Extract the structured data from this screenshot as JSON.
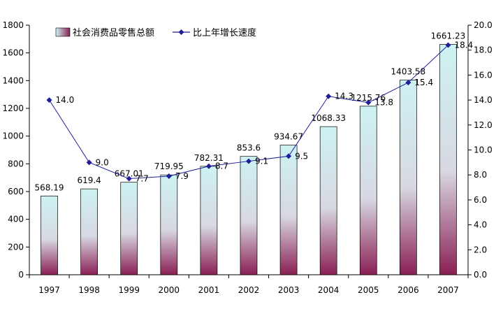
{
  "chart_data": {
    "type": "bar",
    "categories": [
      "1997",
      "1998",
      "1999",
      "2000",
      "2001",
      "2002",
      "2003",
      "2004",
      "2005",
      "2006",
      "2007"
    ],
    "series": [
      {
        "name": "社会消费品零售总额",
        "type": "bar",
        "axis": "left",
        "values": [
          568.19,
          619.4,
          667.01,
          719.95,
          782.31,
          853.6,
          934.67,
          1068.33,
          1215.76,
          1403.58,
          1661.23
        ],
        "labels": [
          "568.19",
          "619.4",
          "667.01",
          "719.95",
          "782.31",
          "853.6",
          "934.67",
          "1068.33",
          "1215.76",
          "1403.58",
          "1661.23"
        ]
      },
      {
        "name": "比上年增长速度",
        "type": "line",
        "axis": "right",
        "values": [
          14.0,
          9.0,
          7.7,
          7.9,
          8.7,
          9.1,
          9.5,
          14.3,
          13.8,
          15.4,
          18.4
        ],
        "labels": [
          "14.0",
          "9.0",
          "7.7",
          "7.9",
          "8.7",
          "9.1",
          "9.5",
          "14.3",
          "13.8",
          "15.4",
          "18.4"
        ]
      }
    ],
    "y_left": {
      "range": [
        0,
        1800
      ],
      "ticks": [
        "0",
        "200",
        "400",
        "600",
        "800",
        "1000",
        "1200",
        "1400",
        "1600",
        "1800"
      ]
    },
    "y_right": {
      "range": [
        0,
        20
      ],
      "ticks": [
        "0.0",
        "2.0",
        "4.0",
        "6.0",
        "8.0",
        "10.0",
        "12.0",
        "14.0",
        "16.0",
        "18.0",
        "20.0"
      ]
    },
    "grid": false,
    "legend_position": "top-left",
    "colors": {
      "line": "#1f1f9c",
      "bar_top": "#cdf2f2",
      "bar_bottom": "#8a1f54",
      "axis": "#000000"
    }
  }
}
